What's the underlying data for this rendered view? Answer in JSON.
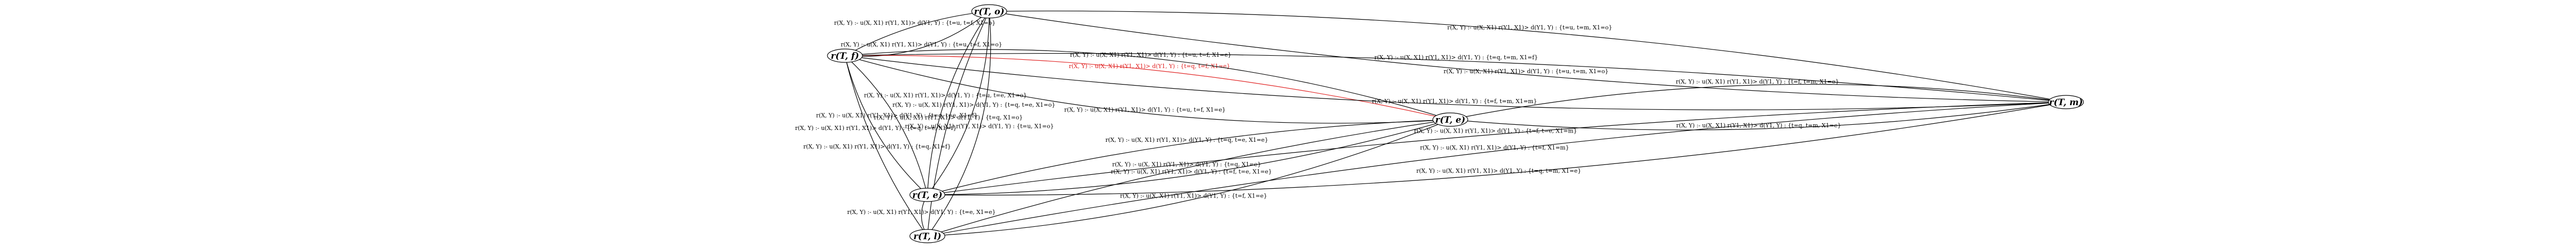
{
  "nodes": [
    {
      "label": "r(T, o)"
    },
    {
      "label": "r(T, f)"
    },
    {
      "label": "r(T, m)"
    },
    {
      "label": "r(T, e)"
    },
    {
      "label": "r(T, e)"
    },
    {
      "label": "r(T, l)"
    }
  ],
  "edges": [
    {
      "from": 0,
      "to": 1,
      "label": "r(X, Y) :- u(X, X1) r(Y1, X1)> d(Y1, Y) : {t=u, t=f, X1=o}"
    },
    {
      "from": 0,
      "to": 1,
      "label": "r(X, Y) :- u(X, X1) r(Y1, X1)> d(Y1, Y) : {t=u, t=f, X1=o}"
    },
    {
      "from": 0,
      "to": 2,
      "label": "r(X, Y) :- u(X, X1) r(Y1, X1)> d(Y1, Y) : {t=u, t=m, X1=o}"
    },
    {
      "from": 0,
      "to": 2,
      "label": "r(X, Y) :- u(X, X1) r(Y1, X1)> d(Y1, Y) : {t=u, t=m, X1=o}"
    },
    {
      "from": 0,
      "to": 4,
      "label": "r(X, Y) :- u(X, X1) r(Y1, X1)> d(Y1, Y) : {t=u, t=e, X1=o}"
    },
    {
      "from": 0,
      "to": 4,
      "label": "r(X, Y) :- u(X, X1) r(Y1, X1)> d(Y1, Y) : {t=q, t=e, X1=o}"
    },
    {
      "from": 0,
      "to": 5,
      "label": "r(X, Y) :- u(X, X1) r(Y1, X1)> d(Y1, Y) : {t=q, X1=o}"
    },
    {
      "from": 0,
      "to": 5,
      "label": "r(X, Y) :- u(X, X1) r(Y1, X1)> d(Y1, Y) : {t=u, X1=o}"
    },
    {
      "from": 3,
      "to": 1,
      "label": "r(X, Y) :- u(X, X1) r(Y1, X1)> d(Y1, Y) : {t=q, t=f, X1=e}",
      "color": "#e02020"
    },
    {
      "from": 3,
      "to": 1,
      "label": "r(X, Y) :- u(X, X1) r(Y1, X1)> d(Y1, Y) : {t=u, t=f, X1=e}"
    },
    {
      "from": 3,
      "to": 1,
      "label": "r(X, Y) :- u(X, X1) r(Y1, X1)> d(Y1, Y) : {t=u, t=f, X1=e}"
    },
    {
      "from": 3,
      "to": 2,
      "label": "r(X, Y) :- u(X, X1) r(Y1, X1)> d(Y1, Y) : {t=q, t=m, X1=e}"
    },
    {
      "from": 3,
      "to": 2,
      "label": "r(X, Y) :- u(X, X1) r(Y1, X1)> d(Y1, Y) : {t=f, t=m, X1=e}"
    },
    {
      "from": 3,
      "to": 4,
      "label": "r(X, Y) :- u(X, X1) r(Y1, X1)> d(Y1, Y) : {t=q, t=e, X1=e}"
    },
    {
      "from": 3,
      "to": 4,
      "label": "r(X, Y) :- u(X, X1) r(Y1, X1)> d(Y1, Y) : {t=f, t=e, X1=e}"
    },
    {
      "from": 3,
      "to": 5,
      "label": "r(X, Y) :- u(X, X1) r(Y1, X1)> d(Y1, Y) : {t=q, X1=e}"
    },
    {
      "from": 3,
      "to": 5,
      "label": "r(X, Y) :- u(X, X1) r(Y1, X1)> d(Y1, Y) : {t=f, X1=e}"
    },
    {
      "from": 2,
      "to": 1,
      "label": "r(X, Y) :- u(X, X1) r(Y1, X1)> d(Y1, Y) : {t=q, t=m, X1=f}"
    },
    {
      "from": 2,
      "to": 1,
      "label": "r(X, Y) :- u(X, X1) r(Y1, X1)> d(Y1, Y) : {t=f, t=m, X1=m}"
    },
    {
      "from": 2,
      "to": 4,
      "label": "r(X, Y) :- u(X, X1) r(Y1, X1)> d(Y1, Y) : {t=f, t=e, X1=m}"
    },
    {
      "from": 2,
      "to": 5,
      "label": "r(X, Y) :- u(X, X1) r(Y1, X1)> d(Y1, Y) : {t=f, X1=m}"
    },
    {
      "from": 2,
      "to": 4,
      "label": "r(X, Y) :- u(X, X1) r(Y1, X1)> d(Y1, Y) : {t=q, t=m, X1=e}"
    },
    {
      "from": 1,
      "to": 4,
      "label": "r(X, Y) :- u(X, X1) r(Y1, X1)> d(Y1, Y) : {t=q, t=e, X1=f}"
    },
    {
      "from": 1,
      "to": 4,
      "label": "r(X, Y) :- u(X, X1) r(Y1, X1)> d(Y1, Y) : {t=q, t=e, X1=f}"
    },
    {
      "from": 1,
      "to": 5,
      "label": "r(X, Y) :- u(X, X1) r(Y1, X1)> d(Y1, Y) : {t=q, X1=f}"
    },
    {
      "from": 4,
      "to": 5,
      "label": "r(X, Y) :- u(X, X1) r(Y1, X1)> d(Y1, Y) : {t=e, X1=e}"
    }
  ]
}
